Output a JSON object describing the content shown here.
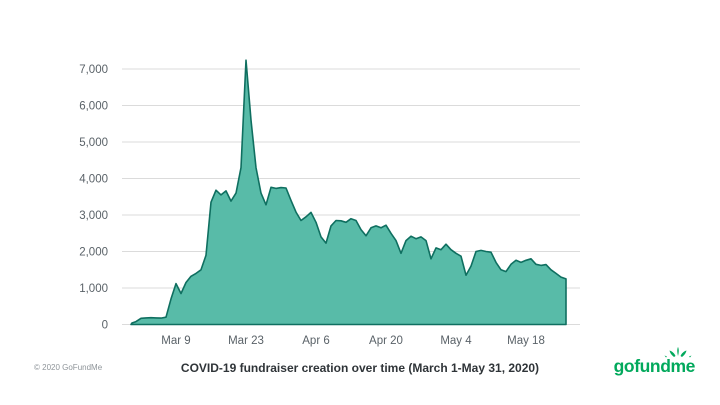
{
  "footer": {
    "copyright": "© 2020 GoFundMe",
    "logo_text": "gofundme",
    "logo_color": "#02a95c"
  },
  "chart_data": {
    "type": "area",
    "title": "COVID-19 fundraiser creation over time (March 1-May 31, 2020)",
    "subtitle": "",
    "xlabel": "",
    "ylabel": "",
    "x_start_date": "Mar 1, 2020",
    "x_frequency": "daily",
    "x_ticks": [
      {
        "label": "Mar 9",
        "day": 8
      },
      {
        "label": "Mar 23",
        "day": 22
      },
      {
        "label": "Apr 6",
        "day": 36
      },
      {
        "label": "Apr 20",
        "day": 50
      },
      {
        "label": "May 4",
        "day": 64
      },
      {
        "label": "May 18",
        "day": 78
      }
    ],
    "y_ticks": [
      {
        "label": "0",
        "value": 0
      },
      {
        "label": "1,000",
        "value": 1000
      },
      {
        "label": "2,000",
        "value": 2000
      },
      {
        "label": "3,000",
        "value": 3000
      },
      {
        "label": "4,000",
        "value": 4000
      },
      {
        "label": "5,000",
        "value": 5000
      },
      {
        "label": "6,000",
        "value": 6000
      },
      {
        "label": "7,000",
        "value": 7000
      }
    ],
    "ylim": [
      0,
      7500
    ],
    "grid": "horizontal",
    "legend": "none",
    "area_fill": "#58bba8",
    "area_stroke": "#0f6f60",
    "grid_color": "#dbdbdb",
    "peak": {
      "day": 22,
      "value": 7240,
      "approx_date": "Mar 23"
    },
    "values": [
      80,
      170,
      180,
      185,
      180,
      175,
      200,
      700,
      1120,
      850,
      1150,
      1320,
      1400,
      1500,
      1900,
      3350,
      3680,
      3550,
      3660,
      3380,
      3600,
      4300,
      7240,
      5600,
      4300,
      3600,
      3280,
      3760,
      3730,
      3750,
      3740,
      3400,
      3080,
      2850,
      2950,
      3070,
      2800,
      2400,
      2230,
      2700,
      2850,
      2840,
      2800,
      2900,
      2850,
      2600,
      2430,
      2650,
      2700,
      2650,
      2720,
      2500,
      2300,
      1950,
      2300,
      2420,
      2350,
      2400,
      2300,
      1800,
      2100,
      2050,
      2200,
      2050,
      1950,
      1870,
      1350,
      1600,
      2000,
      2030,
      2000,
      1980,
      1700,
      1500,
      1450,
      1650,
      1760,
      1700,
      1760,
      1800,
      1650,
      1620,
      1640,
      1500,
      1400,
      1300,
      1250
    ]
  }
}
